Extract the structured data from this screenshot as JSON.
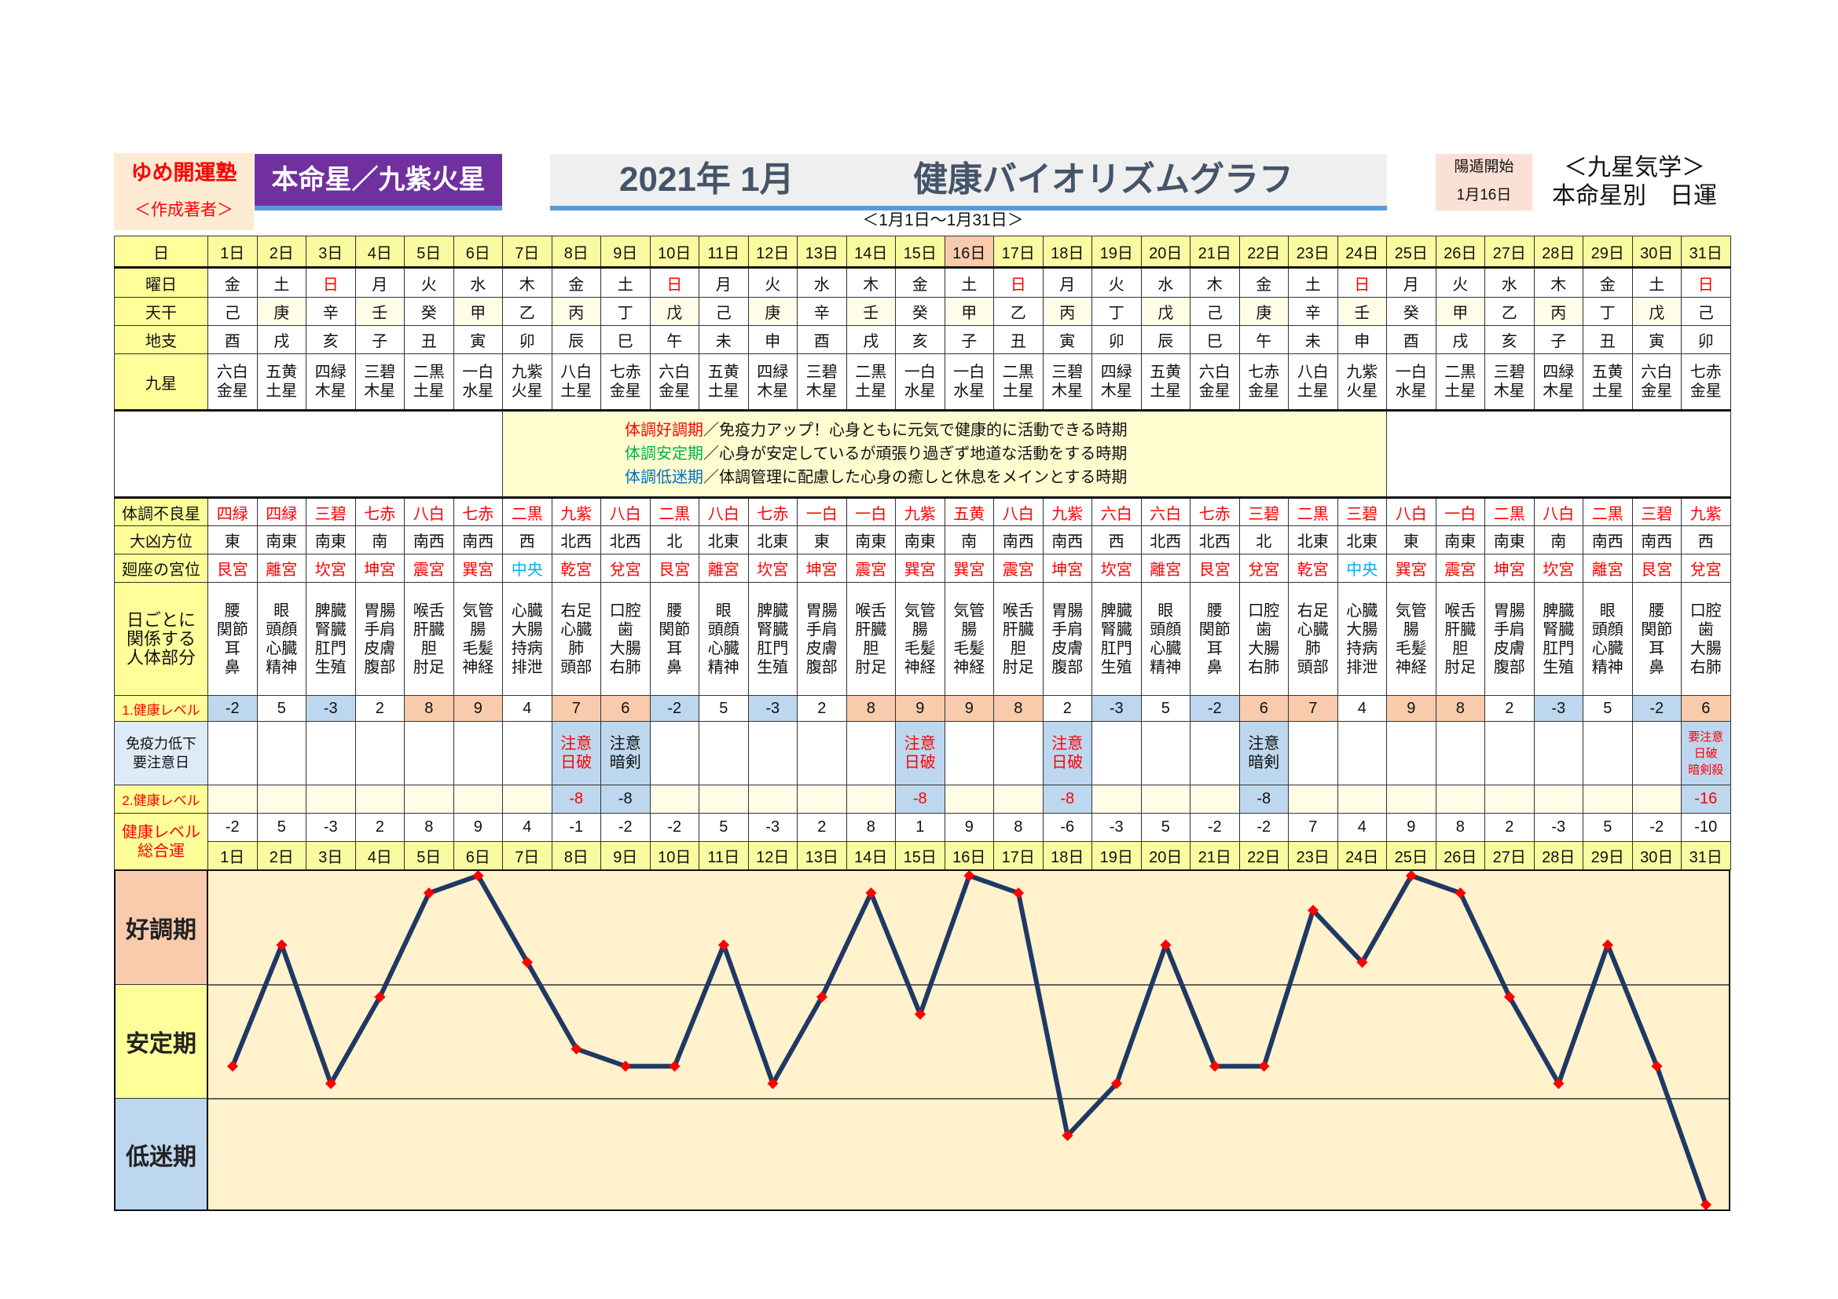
{
  "header": {
    "author_name": "ゆめ開運塾",
    "author_label": "＜作成著者＞",
    "honmei": "本命星／九紫火星",
    "title_date": "2021年 1月",
    "title_main": "健康バイオリズムグラフ",
    "range": "＜1月1日～1月31日＞",
    "yoton_label": "陽遁開始",
    "yoton_date": "1月16日",
    "kyusei_line1": "＜九星気学＞",
    "kyusei_line2": "本命星別　日運"
  },
  "labels": {
    "day": "日",
    "weekday": "曜日",
    "kan": "天干",
    "shi": "地支",
    "star": "九星",
    "bad_star": "体調不良星",
    "direction": "大凶方位",
    "palace": "廻座の宮位",
    "body": [
      "日ごとに",
      "関係する",
      "人体部分"
    ],
    "level1": "1.健康レベル",
    "immunity": [
      "免疫力低下",
      "要注意日"
    ],
    "level2": "2.健康レベル",
    "total": [
      "健康レベル",
      "総合運"
    ]
  },
  "legend": [
    {
      "term": "体調好調期",
      "desc": "／免疫力アップ！心身ともに元気で健康的に活動できる時期",
      "color": "#ff0000"
    },
    {
      "term": "体調安定期",
      "desc": "／心身が安定しているが頑張り過ぎず地道な活動をする時期",
      "color": "#00b050"
    },
    {
      "term": "体調低迷期",
      "desc": "／体調管理に配慮した心身の癒しと休息をメインとする時期",
      "color": "#0070c0"
    }
  ],
  "days": [
    "1日",
    "2日",
    "3日",
    "4日",
    "5日",
    "6日",
    "7日",
    "8日",
    "9日",
    "10日",
    "11日",
    "12日",
    "13日",
    "14日",
    "15日",
    "16日",
    "17日",
    "18日",
    "19日",
    "20日",
    "21日",
    "22日",
    "23日",
    "24日",
    "25日",
    "26日",
    "27日",
    "28日",
    "29日",
    "30日",
    "31日"
  ],
  "highlight_day": "16日",
  "weekdays": [
    "金",
    "土",
    "日",
    "月",
    "火",
    "水",
    "木",
    "金",
    "土",
    "日",
    "月",
    "火",
    "水",
    "木",
    "金",
    "土",
    "日",
    "月",
    "火",
    "水",
    "木",
    "金",
    "土",
    "日",
    "月",
    "火",
    "水",
    "木",
    "金",
    "土",
    "日"
  ],
  "kan": [
    "己",
    "庚",
    "辛",
    "壬",
    "癸",
    "甲",
    "乙",
    "丙",
    "丁",
    "戊",
    "己",
    "庚",
    "辛",
    "壬",
    "癸",
    "甲",
    "乙",
    "丙",
    "丁",
    "戊",
    "己",
    "庚",
    "辛",
    "壬",
    "癸",
    "甲",
    "乙",
    "丙",
    "丁",
    "戊",
    "己"
  ],
  "shi": [
    "酉",
    "戌",
    "亥",
    "子",
    "丑",
    "寅",
    "卯",
    "辰",
    "巳",
    "午",
    "未",
    "申",
    "酉",
    "戌",
    "亥",
    "子",
    "丑",
    "寅",
    "卯",
    "辰",
    "巳",
    "午",
    "未",
    "申",
    "酉",
    "戌",
    "亥",
    "子",
    "丑",
    "寅",
    "卯"
  ],
  "stars": [
    [
      "六白",
      "金星"
    ],
    [
      "五黄",
      "土星"
    ],
    [
      "四緑",
      "木星"
    ],
    [
      "三碧",
      "木星"
    ],
    [
      "二黒",
      "土星"
    ],
    [
      "一白",
      "水星"
    ],
    [
      "九紫",
      "火星"
    ],
    [
      "八白",
      "土星"
    ],
    [
      "七赤",
      "金星"
    ],
    [
      "六白",
      "金星"
    ],
    [
      "五黄",
      "土星"
    ],
    [
      "四緑",
      "木星"
    ],
    [
      "三碧",
      "木星"
    ],
    [
      "二黒",
      "土星"
    ],
    [
      "一白",
      "水星"
    ],
    [
      "一白",
      "水星"
    ],
    [
      "二黒",
      "土星"
    ],
    [
      "三碧",
      "木星"
    ],
    [
      "四緑",
      "木星"
    ],
    [
      "五黄",
      "土星"
    ],
    [
      "六白",
      "金星"
    ],
    [
      "七赤",
      "金星"
    ],
    [
      "八白",
      "土星"
    ],
    [
      "九紫",
      "火星"
    ],
    [
      "一白",
      "水星"
    ],
    [
      "二黒",
      "土星"
    ],
    [
      "三碧",
      "木星"
    ],
    [
      "四緑",
      "木星"
    ],
    [
      "五黄",
      "土星"
    ],
    [
      "六白",
      "金星"
    ],
    [
      "七赤",
      "金星"
    ]
  ],
  "bad_stars": [
    "四緑",
    "四緑",
    "三碧",
    "七赤",
    "八白",
    "七赤",
    "二黒",
    "九紫",
    "八白",
    "二黒",
    "八白",
    "七赤",
    "一白",
    "一白",
    "九紫",
    "五黄",
    "八白",
    "九紫",
    "六白",
    "六白",
    "七赤",
    "三碧",
    "二黒",
    "三碧",
    "八白",
    "一白",
    "二黒",
    "八白",
    "二黒",
    "三碧",
    "九紫"
  ],
  "directions": [
    "東",
    "南東",
    "南東",
    "南",
    "南西",
    "南西",
    "西",
    "北西",
    "北西",
    "北",
    "北東",
    "北東",
    "東",
    "南東",
    "南東",
    "南",
    "南西",
    "南西",
    "西",
    "北西",
    "北西",
    "北",
    "北東",
    "北東",
    "東",
    "南東",
    "南東",
    "南",
    "南西",
    "南西",
    "西"
  ],
  "palaces": [
    "艮宮",
    "離宮",
    "坎宮",
    "坤宮",
    "震宮",
    "巽宮",
    "中央",
    "乾宮",
    "兌宮",
    "艮宮",
    "離宮",
    "坎宮",
    "坤宮",
    "震宮",
    "巽宮",
    "巽宮",
    "震宮",
    "坤宮",
    "坎宮",
    "離宮",
    "艮宮",
    "兌宮",
    "乾宮",
    "中央",
    "巽宮",
    "震宮",
    "坤宮",
    "坎宮",
    "離宮",
    "艮宮",
    "兌宮"
  ],
  "palace_body": {
    "艮宮": [
      "腰",
      "関節",
      "耳",
      "鼻"
    ],
    "離宮": [
      "眼",
      "頭顔",
      "心臓",
      "精神"
    ],
    "坎宮": [
      "脾臓",
      "腎臓",
      "肛門",
      "生殖"
    ],
    "坤宮": [
      "胃腸",
      "手肩",
      "皮膚",
      "腹部"
    ],
    "震宮": [
      "喉舌",
      "肝臓",
      "胆",
      "肘足"
    ],
    "巽宮": [
      "気管",
      "腸",
      "毛髪",
      "神経"
    ],
    "中央": [
      "心臓",
      "大腸",
      "持病",
      "排泄"
    ],
    "乾宮": [
      "右足",
      "心臓",
      "肺",
      "頭部"
    ],
    "兌宮": [
      "口腔",
      "歯",
      "大腸",
      "右肺"
    ]
  },
  "level1": [
    -2,
    5,
    -3,
    2,
    8,
    9,
    4,
    7,
    6,
    -2,
    5,
    -3,
    2,
    8,
    9,
    9,
    8,
    2,
    -3,
    5,
    -2,
    6,
    7,
    4,
    9,
    8,
    2,
    -3,
    5,
    -2,
    6
  ],
  "immunity": {
    "8日": {
      "lines": [
        "注意",
        "日破"
      ],
      "color": "#ff0000",
      "level2": "-8"
    },
    "9日": {
      "lines": [
        "注意",
        "暗剣"
      ],
      "color": "#111111",
      "level2": "-8"
    },
    "15日": {
      "lines": [
        "注意",
        "日破"
      ],
      "color": "#ff0000",
      "level2": "-8"
    },
    "18日": {
      "lines": [
        "注意",
        "日破"
      ],
      "color": "#ff0000",
      "level2": "-8"
    },
    "22日": {
      "lines": [
        "注意",
        "暗剣"
      ],
      "color": "#111111",
      "level2": "-8"
    },
    "31日": {
      "lines": [
        "要注意",
        "日破",
        "暗剣殺"
      ],
      "color": "#ff0000",
      "level2": "-16"
    }
  },
  "colors": {
    "good": "#f8cbad",
    "stable": "#ffff99",
    "low": "#bdd7ee",
    "line": "#1f3864",
    "marker": "#ff0000",
    "plot_bg": "#fff2cc",
    "center_palace": "#00b0f0"
  },
  "chart_data": {
    "type": "line",
    "categories": [
      "1日",
      "2日",
      "3日",
      "4日",
      "5日",
      "6日",
      "7日",
      "8日",
      "9日",
      "10日",
      "11日",
      "12日",
      "13日",
      "14日",
      "15日",
      "16日",
      "17日",
      "18日",
      "19日",
      "20日",
      "21日",
      "22日",
      "23日",
      "24日",
      "25日",
      "26日",
      "27日",
      "28日",
      "29日",
      "30日",
      "31日"
    ],
    "values": [
      -2,
      5,
      -3,
      2,
      8,
      9,
      4,
      -1,
      -2,
      -2,
      5,
      -3,
      2,
      8,
      1,
      9,
      8,
      -6,
      -3,
      5,
      -2,
      -2,
      7,
      4,
      9,
      8,
      2,
      -3,
      5,
      -2,
      -10
    ],
    "bands": [
      "好調期",
      "安定期",
      "低迷期"
    ],
    "ylim": [
      -10,
      9
    ],
    "grid": false
  }
}
